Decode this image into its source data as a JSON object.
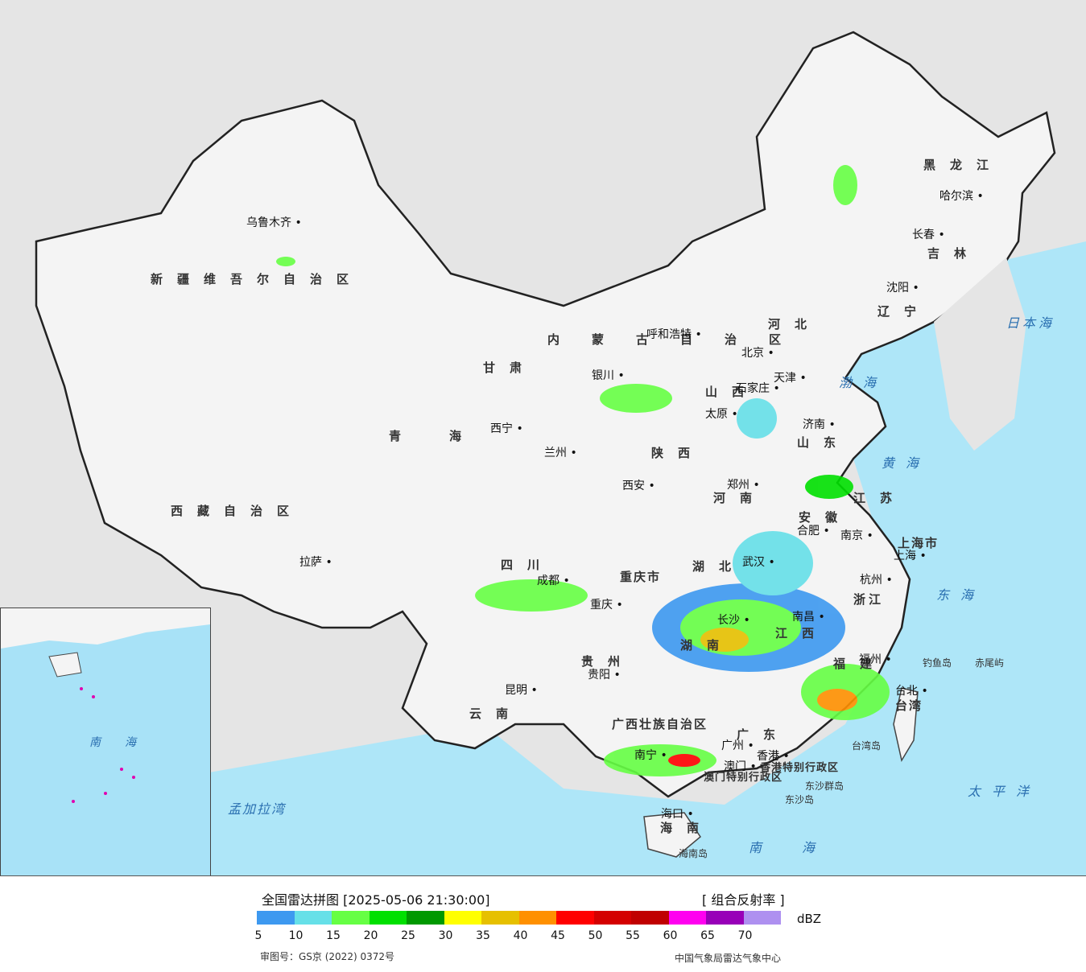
{
  "map": {
    "provinces": [
      {
        "name": "新疆维吾尔自治区"
      },
      {
        "name": "西藏自治区"
      },
      {
        "name": "青海"
      },
      {
        "name": "甘肃"
      },
      {
        "name": "内蒙古自治区"
      },
      {
        "name": "黑龙江"
      },
      {
        "name": "吉林"
      },
      {
        "name": "辽宁"
      },
      {
        "name": "河北"
      },
      {
        "name": "山西"
      },
      {
        "name": "山东"
      },
      {
        "name": "河南"
      },
      {
        "name": "陕西"
      },
      {
        "name": "四川"
      },
      {
        "name": "重庆市"
      },
      {
        "name": "湖北"
      },
      {
        "name": "安徽"
      },
      {
        "name": "江苏"
      },
      {
        "name": "浙江"
      },
      {
        "name": "上海市"
      },
      {
        "name": "湖南"
      },
      {
        "name": "江西"
      },
      {
        "name": "福建"
      },
      {
        "name": "贵州"
      },
      {
        "name": "云南"
      },
      {
        "name": "广西壮族自治区"
      },
      {
        "name": "广东"
      },
      {
        "name": "海南"
      },
      {
        "name": "台湾"
      },
      {
        "name": "香港特别行政区"
      },
      {
        "name": "澳门特别行政区"
      }
    ],
    "cities": [
      "乌鲁木齐",
      "拉萨",
      "西宁",
      "兰州",
      "银川",
      "呼和浩特",
      "北京",
      "天津",
      "石家庄",
      "太原",
      "济南",
      "郑州",
      "西安",
      "合肥",
      "南京",
      "上海",
      "杭州",
      "武汉",
      "成都",
      "重庆",
      "南昌",
      "长沙",
      "福州",
      "贵阳",
      "昆明",
      "南宁",
      "广州",
      "香港",
      "澳门",
      "海口",
      "台北",
      "沈阳",
      "长春",
      "哈尔滨"
    ],
    "seas": [
      "日本海",
      "渤海",
      "黄海",
      "东海",
      "太平洋",
      "南海",
      "孟加拉湾"
    ],
    "islands": [
      "钓鱼岛",
      "赤尾屿",
      "台湾岛",
      "东沙群岛",
      "东沙岛",
      "海南岛"
    ],
    "inset_labels": [
      "南海"
    ]
  },
  "legend": {
    "title": "全国雷达拼图 [2025-05-06 21:30:00]",
    "product": "[ 组合反射率 ]",
    "unit": "dBZ",
    "ticks": [
      "5",
      "10",
      "15",
      "20",
      "25",
      "30",
      "35",
      "40",
      "45",
      "50",
      "55",
      "60",
      "65",
      "70"
    ],
    "colors": [
      "#3d99f0",
      "#66e0e8",
      "#66ff44",
      "#00e000",
      "#009900",
      "#ffff00",
      "#e6c000",
      "#ff9000",
      "#ff0000",
      "#d40000",
      "#c00000",
      "#ff00f0",
      "#9800b8",
      "#ae90f0"
    ],
    "approval_number": "审图号：GS京 (2022) 0372号",
    "agency": "中国气象局雷达气象中心"
  }
}
